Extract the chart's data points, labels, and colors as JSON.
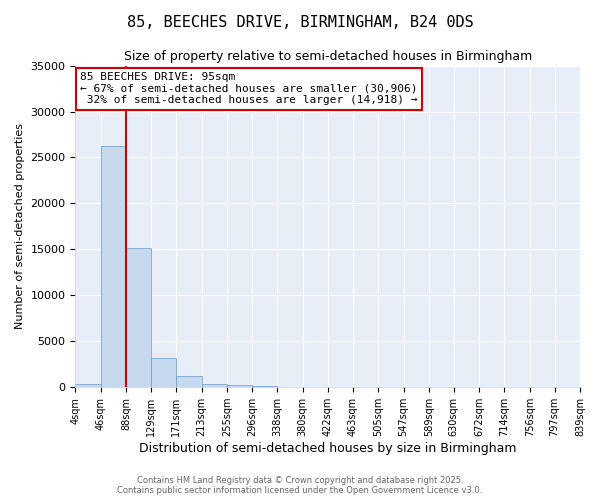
{
  "title": "85, BEECHES DRIVE, BIRMINGHAM, B24 0DS",
  "subtitle": "Size of property relative to semi-detached houses in Birmingham",
  "xlabel": "Distribution of semi-detached houses by size in Birmingham",
  "ylabel": "Number of semi-detached properties",
  "property_label": "85 BEECHES DRIVE: 95sqm",
  "pct_smaller": 67,
  "pct_larger": 32,
  "n_smaller": 30906,
  "n_larger": 14918,
  "bin_labels": [
    "4sqm",
    "46sqm",
    "88sqm",
    "129sqm",
    "171sqm",
    "213sqm",
    "255sqm",
    "296sqm",
    "338sqm",
    "380sqm",
    "422sqm",
    "463sqm",
    "505sqm",
    "547sqm",
    "589sqm",
    "630sqm",
    "672sqm",
    "714sqm",
    "756sqm",
    "797sqm",
    "839sqm"
  ],
  "bin_edges": [
    4,
    46,
    88,
    129,
    171,
    213,
    255,
    296,
    338,
    380,
    422,
    463,
    505,
    547,
    589,
    630,
    672,
    714,
    756,
    797,
    839
  ],
  "bar_values": [
    400,
    26200,
    15100,
    3200,
    1200,
    400,
    200,
    80,
    0,
    0,
    0,
    0,
    0,
    0,
    0,
    0,
    0,
    0,
    0,
    0
  ],
  "bar_color": "#c5d8ee",
  "bar_edge_color": "#6699cc",
  "vline_color": "#cc0000",
  "vline_x": 88,
  "ylim": [
    0,
    35000
  ],
  "yticks": [
    0,
    5000,
    10000,
    15000,
    20000,
    25000,
    30000,
    35000
  ],
  "background_color": "#ffffff",
  "plot_bg_color": "#e8eef8",
  "grid_color": "#ffffff",
  "footer_line1": "Contains HM Land Registry data © Crown copyright and database right 2025.",
  "footer_line2": "Contains public sector information licensed under the Open Government Licence v3.0."
}
